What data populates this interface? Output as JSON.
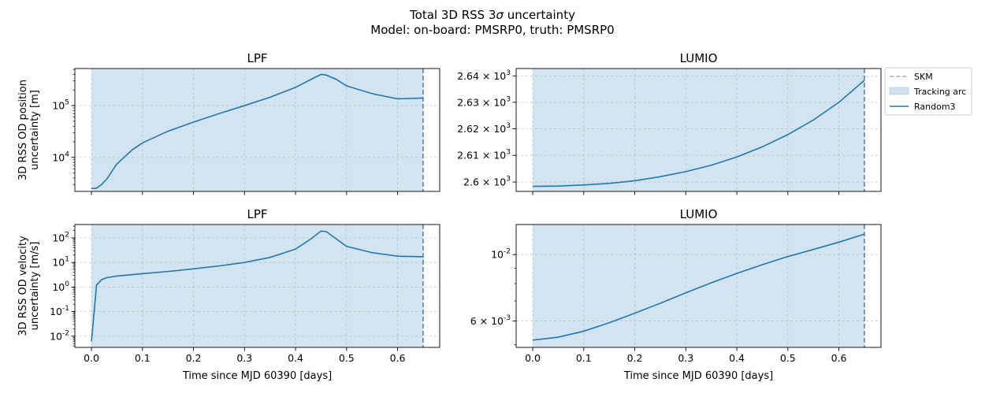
{
  "figure": {
    "title_line1": "Total 3D RSS 3σ uncertainty",
    "title_line2": "Model: on-board: PMSRP0, truth: PMSRP0"
  },
  "legend": {
    "placement": "outside right of upper-right panel",
    "items": [
      {
        "label": "SKM",
        "style": "dashed",
        "color": "#aaaaaa"
      },
      {
        "label": "Tracking arc",
        "style": "patch",
        "color": "#cfe1ee"
      },
      {
        "label": "Random3",
        "style": "line",
        "color": "#1f77b4"
      }
    ]
  },
  "chart_data": [
    {
      "type": "line",
      "title": "LPF",
      "xlabel": "",
      "ylabel": "3D RSS OD position\nuncertainty [m]",
      "yscale": "log",
      "xlim": [
        -0.0325,
        0.6825
      ],
      "ylim": [
        2200,
        520000
      ],
      "yticks": [
        {
          "value": 10000,
          "label": "10^4"
        },
        {
          "value": 100000,
          "label": "10^5"
        }
      ],
      "grid": true,
      "tracking_arc": [
        0,
        0.65
      ],
      "skm": [
        0.65
      ],
      "series": [
        {
          "name": "Random3",
          "color": "#1f77b4",
          "x": [
            0,
            0.01,
            0.02,
            0.03,
            0.05,
            0.08,
            0.1,
            0.15,
            0.2,
            0.25,
            0.3,
            0.35,
            0.4,
            0.43,
            0.45,
            0.46,
            0.48,
            0.5,
            0.55,
            0.6,
            0.65
          ],
          "y": [
            2500,
            2550,
            3000,
            3800,
            7500,
            14000,
            19000,
            32000,
            48000,
            70000,
            100000,
            145000,
            225000,
            320000,
            400000,
            390000,
            320000,
            240000,
            170000,
            135000,
            140000
          ]
        }
      ]
    },
    {
      "type": "line",
      "title": "LUMIO",
      "xlabel": "",
      "ylabel": "",
      "yscale": "log",
      "xlim": [
        -0.0325,
        0.6825
      ],
      "ylim": [
        2596.5,
        2642.8
      ],
      "yticks": [
        {
          "value": 2600,
          "label": "2.6 × 10^3"
        },
        {
          "value": 2610,
          "label": "2.61 × 10^3"
        },
        {
          "value": 2620,
          "label": "2.62 × 10^3"
        },
        {
          "value": 2630,
          "label": "2.63 × 10^3"
        },
        {
          "value": 2640,
          "label": "2.64 × 10^3"
        }
      ],
      "grid": true,
      "tracking_arc": [
        0,
        0.65
      ],
      "skm": [
        0.65
      ],
      "series": [
        {
          "name": "Random3",
          "color": "#1f77b4",
          "x": [
            0,
            0.05,
            0.1,
            0.15,
            0.2,
            0.25,
            0.3,
            0.35,
            0.4,
            0.45,
            0.5,
            0.55,
            0.6,
            0.65
          ],
          "y": [
            2598.4,
            2598.5,
            2598.9,
            2599.5,
            2600.5,
            2602,
            2603.9,
            2606.3,
            2609.4,
            2613.2,
            2617.8,
            2623.3,
            2630,
            2638.3
          ]
        }
      ]
    },
    {
      "type": "line",
      "title": "LPF",
      "xlabel": "Time since MJD 60390 [days]",
      "ylabel": "3D RSS OD velocity\nuncertainty [m/s]",
      "yscale": "log",
      "xlim": [
        -0.0325,
        0.6825
      ],
      "ylim": [
        0.0035,
        350
      ],
      "yticks": [
        {
          "value": 0.01,
          "label": "10^-2"
        },
        {
          "value": 0.1,
          "label": "10^-1"
        },
        {
          "value": 1,
          "label": "10^0"
        },
        {
          "value": 10,
          "label": "10^1"
        },
        {
          "value": 100,
          "label": "10^2"
        }
      ],
      "xticks": [
        "0.0",
        "0.1",
        "0.2",
        "0.3",
        "0.4",
        "0.5",
        "0.6"
      ],
      "grid": true,
      "tracking_arc": [
        0,
        0.65
      ],
      "skm": [
        0.65
      ],
      "series": [
        {
          "name": "Random3",
          "color": "#1f77b4",
          "x": [
            0,
            0.01,
            0.02,
            0.03,
            0.05,
            0.1,
            0.15,
            0.2,
            0.25,
            0.3,
            0.35,
            0.4,
            0.43,
            0.45,
            0.46,
            0.48,
            0.5,
            0.55,
            0.6,
            0.65
          ],
          "y": [
            0.006,
            1.2,
            2.0,
            2.4,
            2.8,
            3.5,
            4.3,
            5.5,
            7.2,
            10,
            16,
            35,
            90,
            190,
            180,
            90,
            45,
            25,
            18,
            17
          ]
        }
      ]
    },
    {
      "type": "line",
      "title": "LUMIO",
      "xlabel": "Time since MJD 60390 [days]",
      "ylabel": "",
      "yscale": "log",
      "xlim": [
        -0.0325,
        0.6825
      ],
      "ylim": [
        0.0049,
        0.0126
      ],
      "yticks": [
        {
          "value": 0.006,
          "label": "6 × 10^-3"
        },
        {
          "value": 0.01,
          "label": "10^-2"
        }
      ],
      "xticks": [
        "0.0",
        "0.1",
        "0.2",
        "0.3",
        "0.4",
        "0.5",
        "0.6"
      ],
      "grid": true,
      "tracking_arc": [
        0,
        0.65
      ],
      "skm": [
        0.65
      ],
      "series": [
        {
          "name": "Random3",
          "color": "#1f77b4",
          "x": [
            0,
            0.05,
            0.1,
            0.15,
            0.2,
            0.25,
            0.3,
            0.35,
            0.4,
            0.45,
            0.5,
            0.55,
            0.6,
            0.65
          ],
          "y": [
            0.00518,
            0.0053,
            0.00555,
            0.00592,
            0.00637,
            0.00688,
            0.00745,
            0.00805,
            0.00865,
            0.00925,
            0.00985,
            0.0104,
            0.011,
            0.0117
          ]
        }
      ]
    }
  ]
}
